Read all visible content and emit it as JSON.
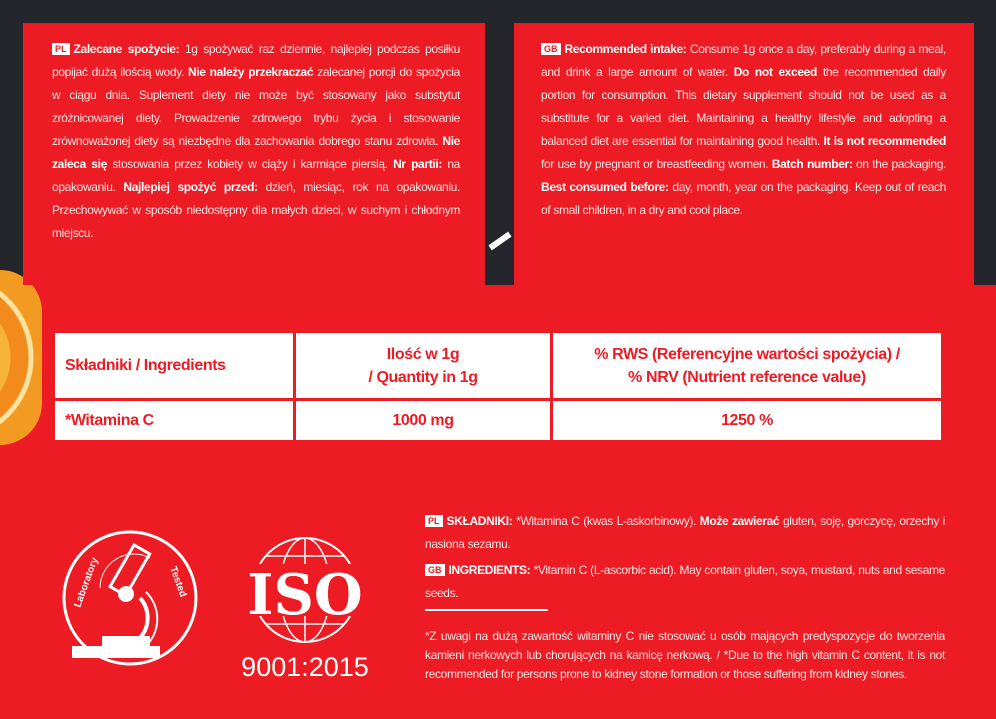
{
  "pl_panel": {
    "flag": "PL",
    "label": "Zalecane spożycie:",
    "t1": " 1g spożywać raz dziennie, najlepiej podczas posiłku popijać dużą ilością wody. ",
    "b1": "Nie należy przekraczać",
    "t2": " zalecanej porcji do spożycia w ciągu dnia. Suplement diety nie może być stosowany jako substytut zróżnicowanej diety. Prowadzenie zdrowego trybu życia i stosowanie zrównoważonej diety są niezbędne dla zachowania dobrego stanu zdrowia. ",
    "b2": "Nie zaleca się",
    "t3": " stosowania przez kobiety w ciąży i karmiące piersią. ",
    "b3": "Nr partii:",
    "t4": " na opakowaniu. ",
    "b4": "Najlepiej spożyć przed:",
    "t5": " dzień, miesiąc, rok na opakowaniu. Przechowywać w sposób niedostępny dla małych dzieci, w suchym i chłodnym miejscu."
  },
  "gb_panel": {
    "flag": "GB",
    "label": "Recommended intake:",
    "t1": " Consume 1g once a day, preferably during a meal, and drink a large amount of water. ",
    "b1": "Do not exceed",
    "t2": " the recommended daily portion for consumption. This dietary supplement should not be used as a substitute for a varied diet. Maintaining a healthy lifestyle and adopting a balanced diet are essential for maintaining good health. ",
    "b2": "It is not recommended",
    "t3": " for use by pregnant or breastfeeding women. ",
    "b3": "Batch number:",
    "t4": " on the packaging. ",
    "b4": "Best consumed before:",
    "t5": " day, month, year on the packaging. Keep out of reach of small children, in a dry and cool place."
  },
  "table": {
    "headers": [
      "Składniki / Ingredients",
      "Ilość w 1g",
      "/ Quantity in 1g",
      "% RWS (Referencyjne wartości spożycia) /",
      "% NRV (Nutrient reference value)"
    ],
    "row": [
      "*Witamina C",
      "1000 mg",
      "1250 %"
    ]
  },
  "ingredients_pl": {
    "flag": "PL",
    "label": "SKŁADNIKI:",
    "t1": " *Witamina C (kwas L-askorbinowy). ",
    "b1": "Może zawierać",
    "t2": " gluten, soję, gorczycę, orzechy i nasiona sezamu."
  },
  "ingredients_gb": {
    "flag": "GB",
    "label": "INGREDIENTS:",
    "t1": " *Vitamin C (L-ascorbic acid). May contain gluten, soya, mustard, nuts and sesame seeds."
  },
  "footnote": "*Z uwagi na dużą zawartość witaminy C nie stosować u osób mających predyspozycje do tworzenia kamieni nerkowych lub chorujących na kamicę nerkową. / *Due to the high vitamin C content, it is not recommended for persons prone to kidney stone formation or those suffering from kidney stones.",
  "logos": {
    "lab": "Laboratory Tested",
    "iso": "ISO",
    "iso_number": "9001:2015"
  },
  "colors": {
    "red": "#ed1c24",
    "dark": "#24262b",
    "white": "#ffffff"
  }
}
